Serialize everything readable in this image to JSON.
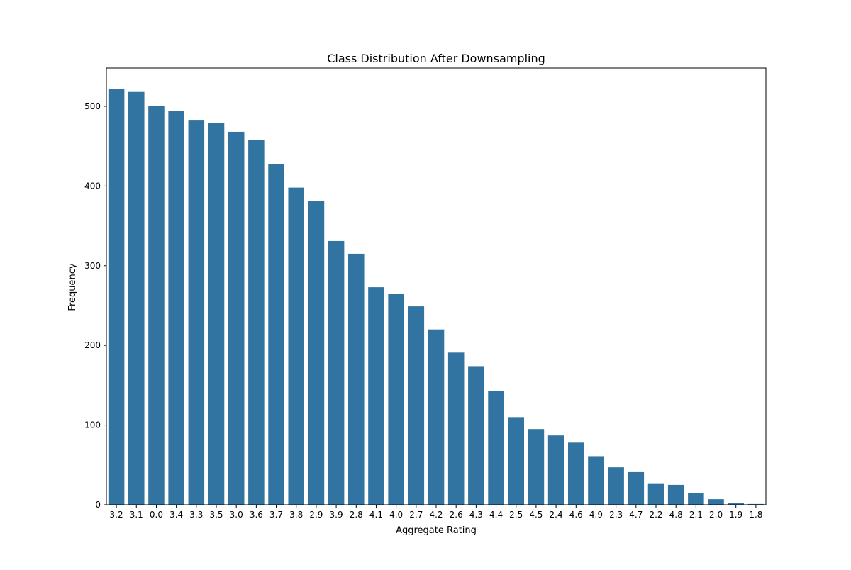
{
  "chart_data": {
    "type": "bar",
    "title": "Class Distribution After Downsampling",
    "xlabel": "Aggregate Rating",
    "ylabel": "Frequency",
    "categories": [
      "3.2",
      "3.1",
      "0.0",
      "3.4",
      "3.3",
      "3.5",
      "3.0",
      "3.6",
      "3.7",
      "3.8",
      "2.9",
      "3.9",
      "2.8",
      "4.1",
      "4.0",
      "2.7",
      "4.2",
      "2.6",
      "4.3",
      "4.4",
      "2.5",
      "4.5",
      "2.4",
      "4.6",
      "4.9",
      "2.3",
      "4.7",
      "2.2",
      "4.8",
      "2.1",
      "2.0",
      "1.9",
      "1.8"
    ],
    "values": [
      522,
      518,
      500,
      494,
      483,
      479,
      468,
      458,
      427,
      398,
      381,
      331,
      315,
      273,
      265,
      249,
      220,
      191,
      174,
      143,
      110,
      95,
      87,
      78,
      61,
      47,
      41,
      27,
      25,
      15,
      7,
      2,
      1
    ],
    "ylim": [
      0,
      548
    ],
    "yticks": [
      0,
      100,
      200,
      300,
      400,
      500
    ],
    "grid": false,
    "legend": "none",
    "colors": {
      "bar": "#3274a1",
      "axis": "#000000",
      "background": "#ffffff"
    }
  }
}
